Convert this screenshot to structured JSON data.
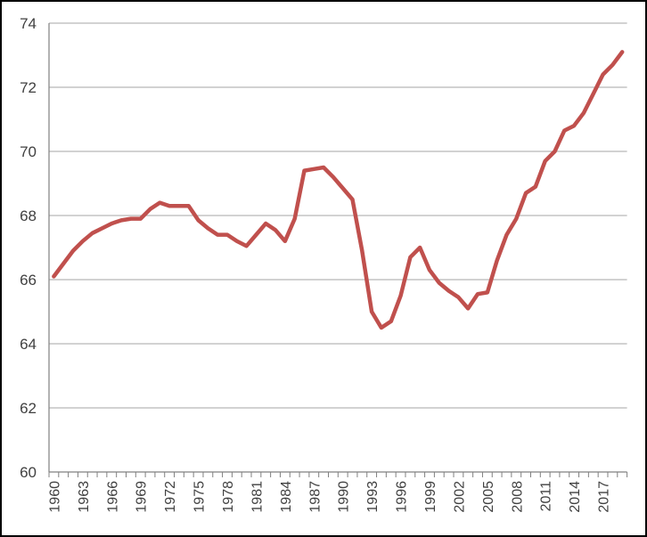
{
  "chart_data": {
    "type": "line",
    "title": "",
    "xlabel": "",
    "ylabel": "",
    "legend": "none",
    "grid": "horizontal",
    "ylim": [
      60,
      74
    ],
    "y_tick_step": 2,
    "y_tick_labels": [
      "60",
      "62",
      "64",
      "66",
      "68",
      "70",
      "72",
      "74"
    ],
    "x_first_year": 1960,
    "x_last_year": 2019,
    "x_label_every": 3,
    "x_tick_labels": [
      "1960",
      "1963",
      "1966",
      "1969",
      "1972",
      "1975",
      "1978",
      "1981",
      "1984",
      "1987",
      "1990",
      "1993",
      "1996",
      "1999",
      "2002",
      "2005",
      "2008",
      "2011",
      "2014",
      "2017"
    ],
    "x": [
      1960,
      1961,
      1962,
      1963,
      1964,
      1965,
      1966,
      1967,
      1968,
      1969,
      1970,
      1971,
      1972,
      1973,
      1974,
      1975,
      1976,
      1977,
      1978,
      1979,
      1980,
      1981,
      1982,
      1983,
      1984,
      1985,
      1986,
      1987,
      1988,
      1989,
      1990,
      1991,
      1992,
      1993,
      1994,
      1995,
      1996,
      1997,
      1998,
      1999,
      2000,
      2001,
      2002,
      2003,
      2004,
      2005,
      2006,
      2007,
      2008,
      2009,
      2010,
      2011,
      2012,
      2013,
      2014,
      2015,
      2016,
      2017,
      2018,
      2019
    ],
    "series": [
      {
        "name": "series-1",
        "color": "#C0504D",
        "values": [
          66.1,
          66.5,
          66.9,
          67.2,
          67.45,
          67.6,
          67.75,
          67.85,
          67.9,
          67.9,
          68.2,
          68.4,
          68.3,
          68.3,
          68.3,
          67.85,
          67.6,
          67.4,
          67.4,
          67.2,
          67.05,
          67.4,
          67.75,
          67.55,
          67.2,
          67.9,
          69.4,
          69.45,
          69.5,
          69.2,
          68.85,
          68.5,
          66.9,
          65.0,
          64.5,
          64.7,
          65.5,
          66.7,
          67.0,
          66.3,
          65.9,
          65.65,
          65.45,
          65.1,
          65.55,
          65.6,
          66.6,
          67.4,
          67.9,
          68.7,
          68.9,
          69.7,
          70.0,
          70.65,
          70.8,
          71.2,
          71.8,
          72.4,
          72.7,
          73.1
        ]
      }
    ]
  },
  "colors": {
    "plot_background": "#ffffff",
    "border": "#000000",
    "gridline": "#a6a6a6",
    "axis": "#808080",
    "label_text": "#404040",
    "series_1": "#C0504D"
  }
}
